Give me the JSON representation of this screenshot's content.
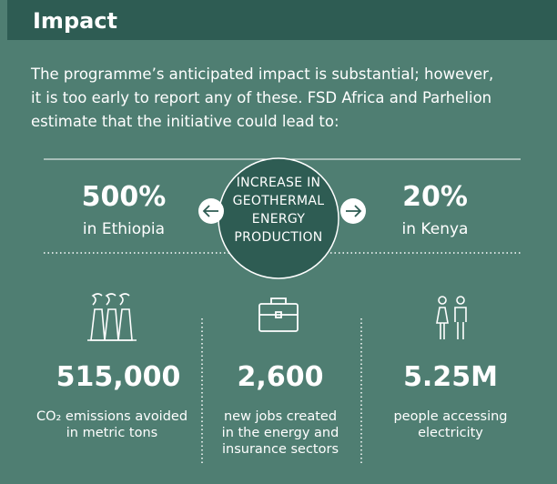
{
  "header": {
    "title": "Impact"
  },
  "intro": [
    "The programme’s anticipated impact is substantial; however,",
    "it is too early to report any of these. FSD Africa and Parhelion",
    "estimate that the initiative could lead to:"
  ],
  "center_label": [
    "INCREASE IN",
    "GEOTHERMAL",
    "ENERGY",
    "PRODUCTION"
  ],
  "increase": [
    {
      "value": "500%",
      "label": "in Ethiopia"
    },
    {
      "value": "20%",
      "label": "in Kenya"
    }
  ],
  "stats": [
    {
      "value": "515,000",
      "caption": [
        "CO₂ emissions avoided",
        "in metric tons"
      ]
    },
    {
      "value": "2,600",
      "caption": [
        "new jobs created",
        "in the energy and",
        "insurance sectors"
      ]
    },
    {
      "value": "5.25M",
      "caption": [
        "people accessing",
        "electricity"
      ]
    }
  ]
}
